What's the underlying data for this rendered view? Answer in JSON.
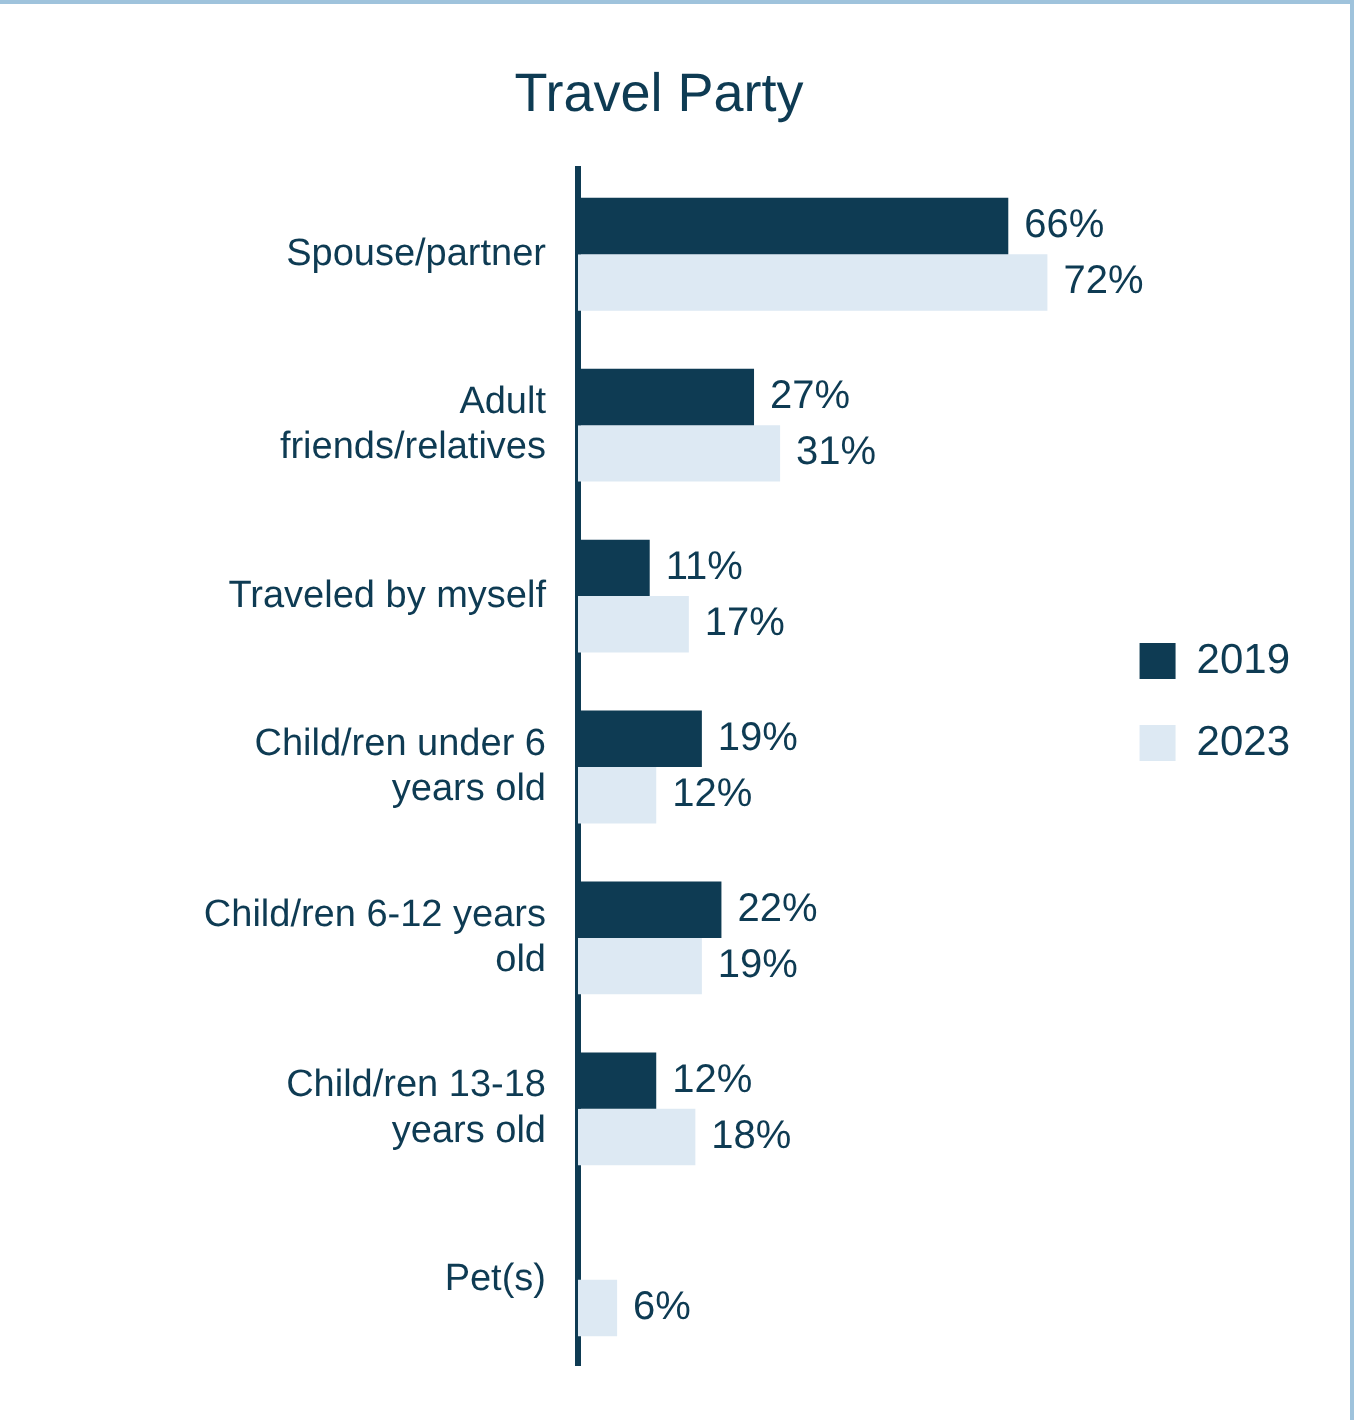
{
  "chart_data": {
    "type": "bar",
    "orientation": "horizontal",
    "title": "Travel Party",
    "categories": [
      "Spouse/partner",
      "Adult friends/relatives",
      "Traveled by myself",
      "Child/ren under 6 years old",
      "Child/ren 6-12 years old",
      "Child/ren 13-18 years old",
      "Pet(s)"
    ],
    "series": [
      {
        "name": "2019",
        "color": "#0e3b53",
        "values": [
          66,
          27,
          11,
          19,
          22,
          12,
          null
        ],
        "value_labels": [
          "66%",
          "27%",
          "11%",
          "19%",
          "22%",
          "12%",
          null
        ]
      },
      {
        "name": "2023",
        "color": "#dde9f3",
        "values": [
          72,
          31,
          17,
          12,
          19,
          18,
          6
        ],
        "value_labels": [
          "72%",
          "31%",
          "17%",
          "12%",
          "19%",
          "18%",
          "6%"
        ]
      }
    ],
    "legend": "right",
    "grid": false
  }
}
